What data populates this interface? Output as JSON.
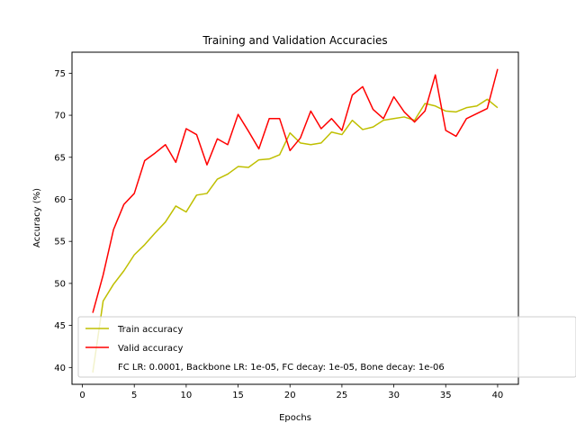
{
  "chart_data": {
    "type": "line",
    "title": "Training and Validation Accuracies",
    "xlabel": "Epochs",
    "ylabel": "Accuracy (%)",
    "xlim": [
      -1,
      42
    ],
    "ylim": [
      38,
      77.5
    ],
    "xticks": [
      0,
      5,
      10,
      15,
      20,
      25,
      30,
      35,
      40
    ],
    "yticks": [
      40,
      45,
      50,
      55,
      60,
      65,
      70,
      75
    ],
    "grid": false,
    "legend_position": "lower-right",
    "legend_entries": [
      "Train accuracy",
      "Valid accuracy",
      "FC LR: 0.0001, Backbone LR: 1e-05, FC decay: 1e-05, Bone decay: 1e-06"
    ],
    "x": [
      1,
      2,
      3,
      4,
      5,
      6,
      7,
      8,
      9,
      10,
      11,
      12,
      13,
      14,
      15,
      16,
      17,
      18,
      19,
      20,
      21,
      22,
      23,
      24,
      25,
      26,
      27,
      28,
      29,
      30,
      31,
      32,
      33,
      34,
      35,
      36,
      37,
      38,
      39,
      40
    ],
    "series": [
      {
        "name": "Train accuracy",
        "color": "#bfbf00",
        "values": [
          39.4,
          47.9,
          49.9,
          51.5,
          53.4,
          54.6,
          56.0,
          57.3,
          59.2,
          58.5,
          60.5,
          60.7,
          62.4,
          63.0,
          63.9,
          63.8,
          64.7,
          64.8,
          65.3,
          67.9,
          66.7,
          66.5,
          66.7,
          68.0,
          67.7,
          69.4,
          68.3,
          68.6,
          69.4,
          69.6,
          69.8,
          69.4,
          71.4,
          71.1,
          70.5,
          70.4,
          70.9,
          71.1,
          71.9,
          70.9
        ]
      },
      {
        "name": "Valid accuracy",
        "color": "#ff0000",
        "values": [
          46.5,
          51.0,
          56.4,
          59.4,
          60.7,
          64.6,
          65.5,
          66.5,
          64.4,
          68.4,
          67.7,
          64.1,
          67.2,
          66.5,
          70.1,
          68.1,
          66.0,
          69.6,
          69.6,
          65.8,
          67.3,
          70.5,
          68.4,
          69.6,
          68.2,
          72.4,
          73.4,
          70.7,
          69.6,
          72.2,
          70.4,
          69.2,
          70.5,
          74.8,
          68.2,
          67.5,
          69.6,
          70.2,
          70.8,
          75.5
        ]
      }
    ]
  }
}
